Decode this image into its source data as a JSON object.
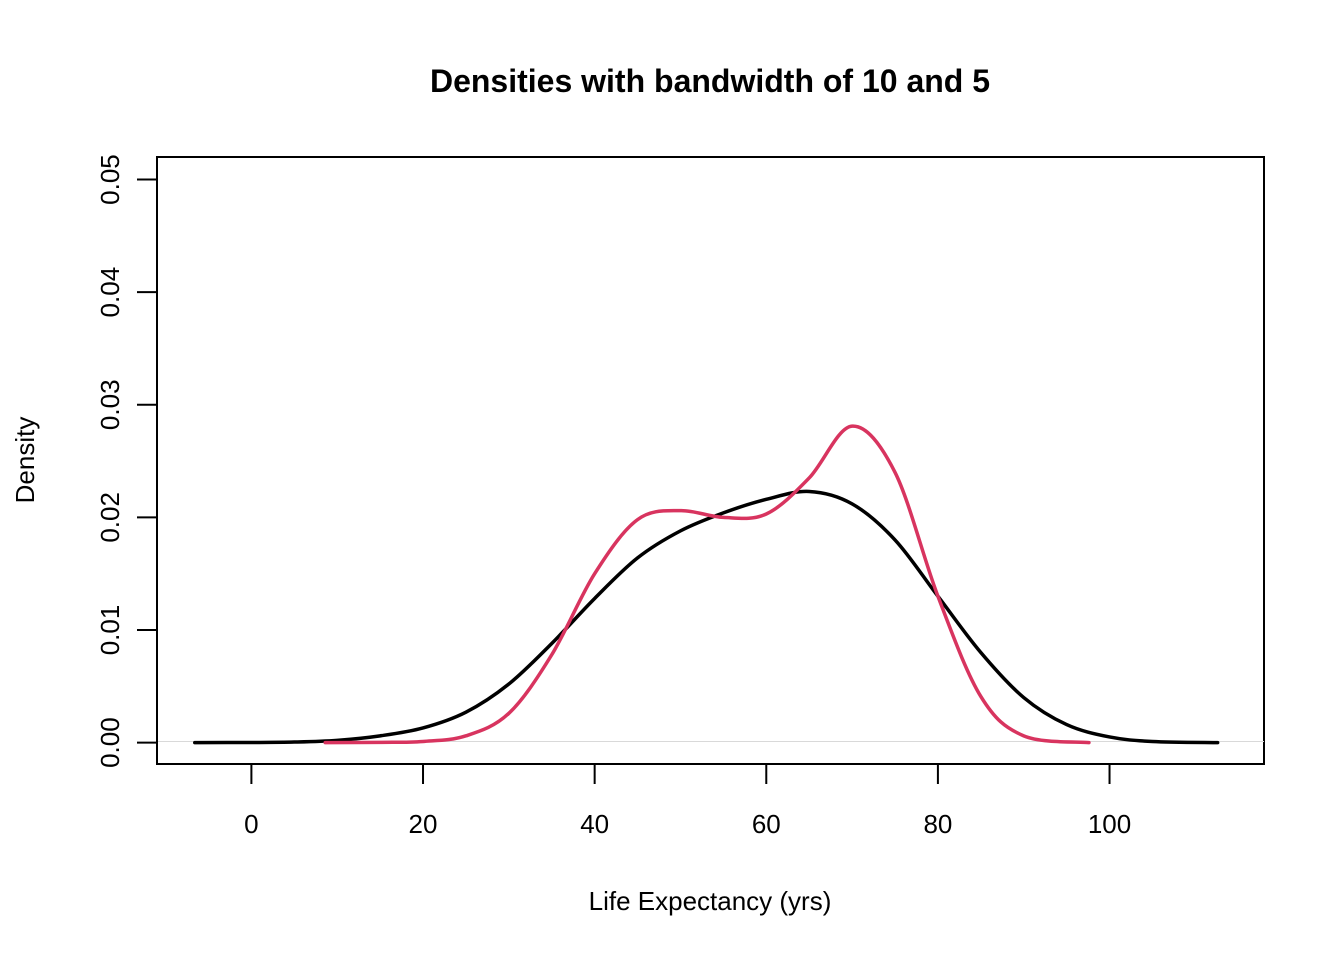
{
  "chart_data": {
    "type": "line",
    "title": "Densities with bandwidth of 10 and 5",
    "xlabel": "Life Expectancy (yrs)",
    "ylabel": "Density",
    "xlim": [
      -11,
      118
    ],
    "ylim": [
      -0.0019,
      0.052
    ],
    "x_ticks": [
      0,
      20,
      40,
      60,
      80,
      100
    ],
    "x_tick_labels": [
      "0",
      "20",
      "40",
      "60",
      "80",
      "100"
    ],
    "y_ticks": [
      0.0,
      0.01,
      0.02,
      0.03,
      0.04,
      0.05
    ],
    "y_tick_labels": [
      "0.00",
      "0.01",
      "0.02",
      "0.03",
      "0.04",
      "0.05"
    ],
    "grid": false,
    "series": [
      {
        "color": "#000000",
        "points": [
          [
            -6.6,
            0.0
          ],
          [
            0,
            1e-05
          ],
          [
            5,
            5e-05
          ],
          [
            10,
            0.0002
          ],
          [
            15,
            0.0006
          ],
          [
            20,
            0.0013
          ],
          [
            25,
            0.0027
          ],
          [
            30,
            0.0052
          ],
          [
            35,
            0.0088
          ],
          [
            40,
            0.0128
          ],
          [
            45,
            0.0164
          ],
          [
            50,
            0.0188
          ],
          [
            55,
            0.0204
          ],
          [
            60,
            0.0216
          ],
          [
            65,
            0.0223
          ],
          [
            70,
            0.0212
          ],
          [
            75,
            0.018
          ],
          [
            80,
            0.013
          ],
          [
            85,
            0.008
          ],
          [
            90,
            0.004
          ],
          [
            95,
            0.0016
          ],
          [
            100,
            0.0005
          ],
          [
            105,
            0.0001
          ],
          [
            112.6,
            0.0
          ]
        ]
      },
      {
        "color": "#D8345F",
        "points": [
          [
            8.6,
            0.0
          ],
          [
            15,
            2e-05
          ],
          [
            20,
            0.0001
          ],
          [
            25,
            0.0006
          ],
          [
            30,
            0.0026
          ],
          [
            35,
            0.0078
          ],
          [
            40,
            0.015
          ],
          [
            45,
            0.0198
          ],
          [
            50,
            0.0206
          ],
          [
            55,
            0.02
          ],
          [
            60,
            0.0203
          ],
          [
            65,
            0.0235
          ],
          [
            70,
            0.0281
          ],
          [
            75,
            0.024
          ],
          [
            80,
            0.013
          ],
          [
            85,
            0.0041
          ],
          [
            90,
            0.0006
          ],
          [
            97.6,
            0.0
          ]
        ]
      }
    ]
  }
}
